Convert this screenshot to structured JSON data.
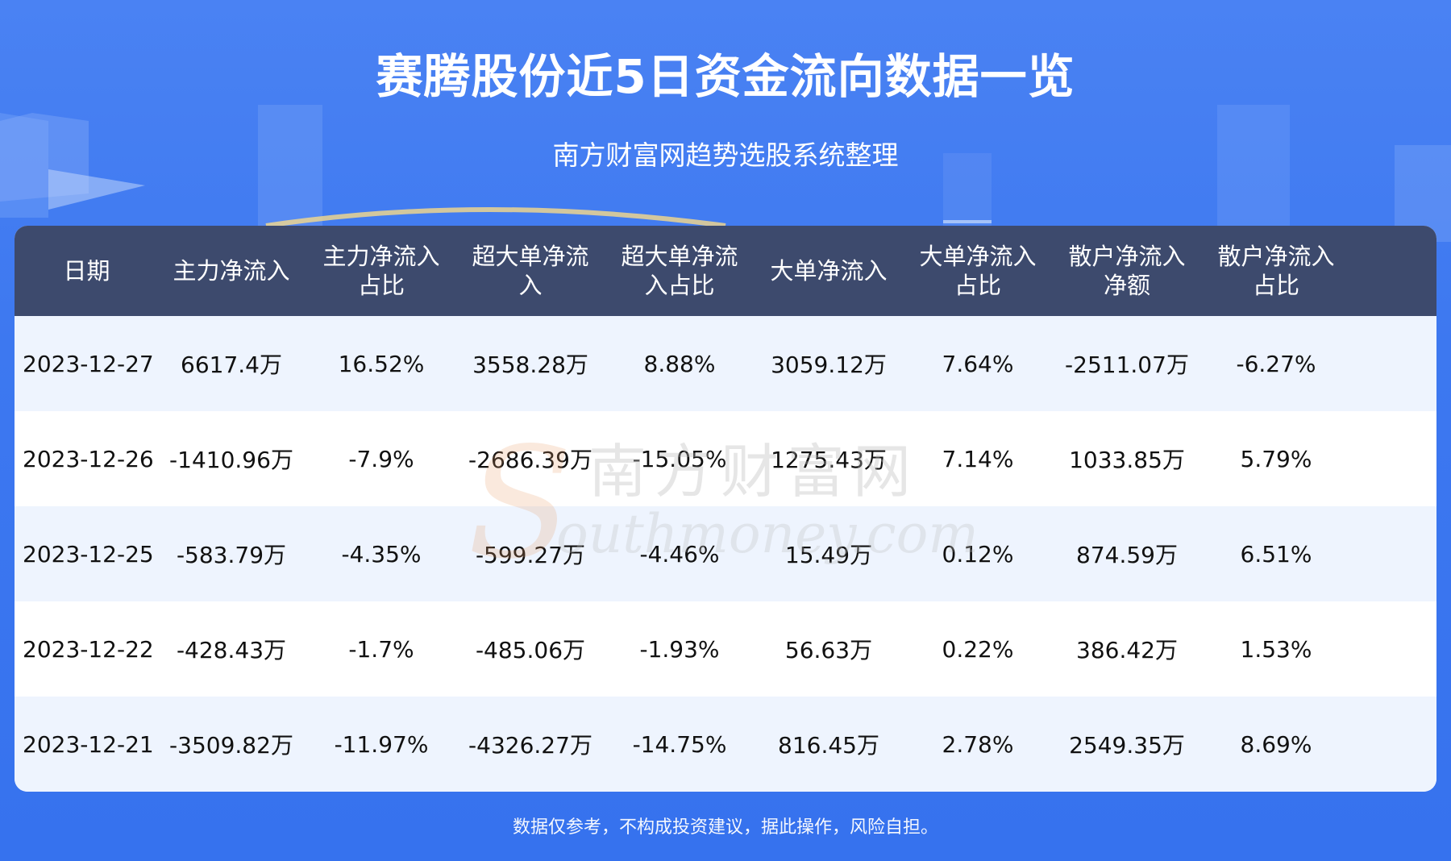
{
  "header": {
    "title": "赛腾股份近5日资金流向数据一览",
    "subtitle": "南方财富网趋势选股系统整理"
  },
  "chart_data": {
    "type": "table",
    "columns": [
      "日期",
      "主力净流入",
      "主力净流入占比",
      "超大单净流入",
      "超大单净流入占比",
      "大单净流入",
      "大单净流入占比",
      "散户净流入净额",
      "散户净流入占比"
    ],
    "rows": [
      [
        "2023-12-27",
        "6617.4万",
        "16.52%",
        "3558.28万",
        "8.88%",
        "3059.12万",
        "7.64%",
        "-2511.07万",
        "-6.27%"
      ],
      [
        "2023-12-26",
        "-1410.96万",
        "-7.9%",
        "-2686.39万",
        "-15.05%",
        "1275.43万",
        "7.14%",
        "1033.85万",
        "5.79%"
      ],
      [
        "2023-12-25",
        "-583.79万",
        "-4.35%",
        "-599.27万",
        "-4.46%",
        "15.49万",
        "0.12%",
        "874.59万",
        "6.51%"
      ],
      [
        "2023-12-22",
        "-428.43万",
        "-1.7%",
        "-485.06万",
        "-1.93%",
        "56.63万",
        "0.22%",
        "386.42万",
        "1.53%"
      ],
      [
        "2023-12-21",
        "-3509.82万",
        "-11.97%",
        "-4326.27万",
        "-14.75%",
        "816.45万",
        "2.78%",
        "2549.35万",
        "8.69%"
      ]
    ]
  },
  "watermark": {
    "cn": "南方财富网",
    "en": "outhmoney.com",
    "letter": "S"
  },
  "footer": {
    "disclaimer": "数据仅参考，不构成投资建议，据此操作，风险自担。"
  },
  "colors": {
    "background": "#3d78f0",
    "header_row": "#3d4a6d",
    "row_odd": "#eef4fe",
    "row_even": "#ffffff"
  }
}
